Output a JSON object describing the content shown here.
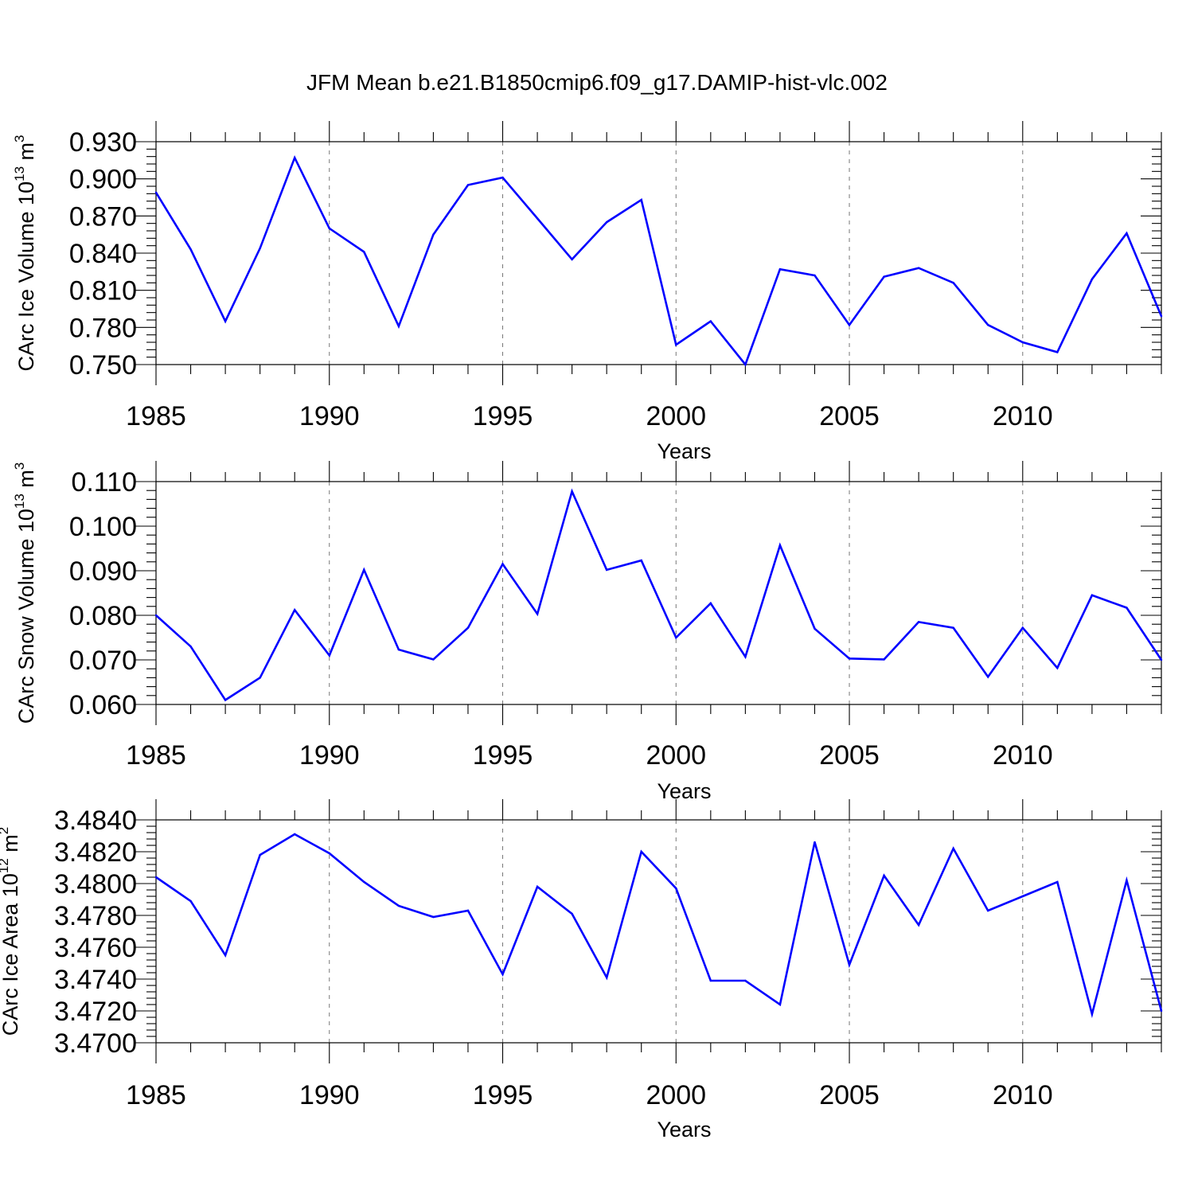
{
  "title": "JFM Mean b.e21.B1850cmip6.f09_g17.DAMIP-hist-vlc.002",
  "colors": {
    "line": "#0000ff",
    "grid": "#777777",
    "axis": "#000000"
  },
  "chart_data": [
    {
      "type": "line",
      "xlabel": "Years",
      "ylabel": "CArc Ice Volume 10",
      "ylabel_exp": "13",
      "ylabel_unit": " m",
      "ylabel_unit_exp": "3",
      "xlim": [
        1985,
        2014
      ],
      "ylim": [
        0.75,
        0.93
      ],
      "xticks": [
        "1985",
        "1990",
        "1995",
        "2000",
        "2005",
        "2010"
      ],
      "yticks": [
        "0.750",
        "0.780",
        "0.810",
        "0.840",
        "0.870",
        "0.900",
        "0.930"
      ],
      "grid": "vertical dashed",
      "x": [
        1985,
        1986,
        1987,
        1988,
        1989,
        1990,
        1991,
        1992,
        1993,
        1994,
        1995,
        1996,
        1997,
        1998,
        1999,
        2000,
        2001,
        2002,
        2003,
        2004,
        2005,
        2006,
        2007,
        2008,
        2009,
        2010,
        2011,
        2012,
        2013,
        2014
      ],
      "values": [
        0.889,
        0.843,
        0.785,
        0.844,
        0.917,
        0.86,
        0.841,
        0.781,
        0.855,
        0.895,
        0.901,
        0.868,
        0.835,
        0.865,
        0.883,
        0.766,
        0.785,
        0.75,
        0.827,
        0.822,
        0.782,
        0.821,
        0.828,
        0.816,
        0.782,
        0.768,
        0.76,
        0.819,
        0.856,
        0.789
      ]
    },
    {
      "type": "line",
      "xlabel": "Years",
      "ylabel": "CArc Snow Volume 10",
      "ylabel_exp": "13",
      "ylabel_unit": " m",
      "ylabel_unit_exp": "3",
      "xlim": [
        1985,
        2014
      ],
      "ylim": [
        0.06,
        0.11
      ],
      "xticks": [
        "1985",
        "1990",
        "1995",
        "2000",
        "2005",
        "2010"
      ],
      "yticks": [
        "0.060",
        "0.070",
        "0.080",
        "0.090",
        "0.100",
        "0.110"
      ],
      "grid": "vertical dashed",
      "x": [
        1985,
        1986,
        1987,
        1988,
        1989,
        1990,
        1991,
        1992,
        1993,
        1994,
        1995,
        1996,
        1997,
        1998,
        1999,
        2000,
        2001,
        2002,
        2003,
        2004,
        2005,
        2006,
        2007,
        2008,
        2009,
        2010,
        2011,
        2012,
        2013,
        2014
      ],
      "values": [
        0.08,
        0.073,
        0.061,
        0.066,
        0.0812,
        0.071,
        0.0902,
        0.0723,
        0.0701,
        0.0772,
        0.0915,
        0.0803,
        0.1078,
        0.0902,
        0.0923,
        0.075,
        0.0827,
        0.0707,
        0.0957,
        0.077,
        0.0703,
        0.0701,
        0.0785,
        0.0772,
        0.0662,
        0.0772,
        0.0682,
        0.0845,
        0.0817,
        0.07
      ]
    },
    {
      "type": "line",
      "xlabel": "Years",
      "ylabel": "CArc Ice Area 10",
      "ylabel_exp": "12",
      "ylabel_unit": " m",
      "ylabel_unit_exp": "2",
      "xlim": [
        1985,
        2014
      ],
      "ylim": [
        3.47,
        3.484
      ],
      "xticks": [
        "1985",
        "1990",
        "1995",
        "2000",
        "2005",
        "2010"
      ],
      "yticks": [
        "3.4700",
        "3.4720",
        "3.4740",
        "3.4760",
        "3.4780",
        "3.4800",
        "3.4820",
        "3.4840"
      ],
      "grid": "vertical dashed",
      "x": [
        1985,
        1986,
        1987,
        1988,
        1989,
        1990,
        1991,
        1992,
        1993,
        1994,
        1995,
        1996,
        1997,
        1998,
        1999,
        2000,
        2001,
        2002,
        2003,
        2004,
        2005,
        2006,
        2007,
        2008,
        2009,
        2010,
        2011,
        2012,
        2013,
        2014
      ],
      "values": [
        3.4804,
        3.4789,
        3.4755,
        3.4818,
        3.4831,
        3.4819,
        3.4801,
        3.4786,
        3.4779,
        3.4783,
        3.4743,
        3.4798,
        3.4781,
        3.4741,
        3.482,
        3.4797,
        3.4739,
        3.4739,
        3.4724,
        3.4826,
        3.4749,
        3.4805,
        3.4774,
        3.4822,
        3.4783,
        3.4792,
        3.4801,
        3.4718,
        3.4802,
        3.472
      ]
    }
  ]
}
